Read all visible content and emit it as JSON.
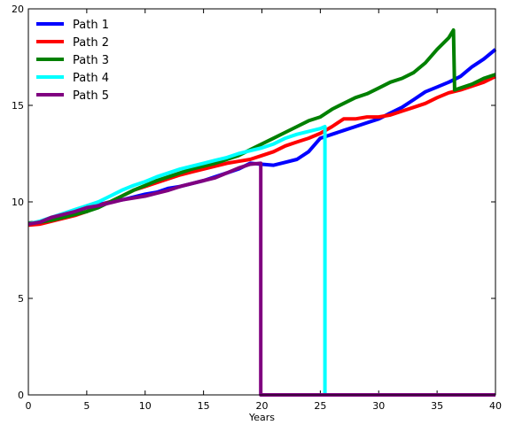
{
  "chart_data": {
    "type": "line",
    "title": "",
    "xlabel": "Years",
    "ylabel": "",
    "xlim": [
      0,
      40
    ],
    "ylim": [
      0,
      20
    ],
    "xticks": [
      0,
      5,
      10,
      15,
      20,
      25,
      30,
      35,
      40
    ],
    "yticks": [
      0,
      5,
      10,
      15,
      20
    ],
    "grid": false,
    "legend_position": "top-left",
    "series": [
      {
        "name": "Path 1",
        "color": "#0000ff",
        "points": [
          [
            0,
            8.9
          ],
          [
            1,
            8.95
          ],
          [
            2,
            9.1
          ],
          [
            3,
            9.3
          ],
          [
            4,
            9.5
          ],
          [
            5,
            9.7
          ],
          [
            6,
            9.85
          ],
          [
            7,
            10.0
          ],
          [
            8,
            10.1
          ],
          [
            9,
            10.25
          ],
          [
            10,
            10.4
          ],
          [
            11,
            10.5
          ],
          [
            12,
            10.7
          ],
          [
            13,
            10.8
          ],
          [
            14,
            10.95
          ],
          [
            15,
            11.1
          ],
          [
            16,
            11.3
          ],
          [
            17,
            11.5
          ],
          [
            18,
            11.7
          ],
          [
            19,
            12.0
          ],
          [
            20,
            11.95
          ],
          [
            21,
            11.9
          ],
          [
            22,
            12.05
          ],
          [
            23,
            12.2
          ],
          [
            24,
            12.6
          ],
          [
            25,
            13.3
          ],
          [
            26,
            13.5
          ],
          [
            27,
            13.7
          ],
          [
            28,
            13.9
          ],
          [
            29,
            14.1
          ],
          [
            30,
            14.3
          ],
          [
            31,
            14.6
          ],
          [
            32,
            14.9
          ],
          [
            33,
            15.3
          ],
          [
            34,
            15.7
          ],
          [
            35,
            15.95
          ],
          [
            36,
            16.2
          ],
          [
            37,
            16.5
          ],
          [
            38,
            17.0
          ],
          [
            39,
            17.4
          ],
          [
            40,
            17.9
          ]
        ]
      },
      {
        "name": "Path 2",
        "color": "#ff0000",
        "points": [
          [
            0,
            8.8
          ],
          [
            1,
            8.85
          ],
          [
            2,
            9.0
          ],
          [
            3,
            9.15
          ],
          [
            4,
            9.3
          ],
          [
            5,
            9.5
          ],
          [
            6,
            9.8
          ],
          [
            7,
            10.0
          ],
          [
            8,
            10.3
          ],
          [
            9,
            10.6
          ],
          [
            10,
            10.8
          ],
          [
            11,
            11.0
          ],
          [
            12,
            11.2
          ],
          [
            13,
            11.4
          ],
          [
            14,
            11.55
          ],
          [
            15,
            11.7
          ],
          [
            16,
            11.85
          ],
          [
            17,
            12.0
          ],
          [
            18,
            12.1
          ],
          [
            19,
            12.2
          ],
          [
            20,
            12.4
          ],
          [
            21,
            12.6
          ],
          [
            22,
            12.9
          ],
          [
            23,
            13.1
          ],
          [
            24,
            13.3
          ],
          [
            25,
            13.55
          ],
          [
            26,
            13.9
          ],
          [
            27,
            14.3
          ],
          [
            28,
            14.3
          ],
          [
            29,
            14.4
          ],
          [
            30,
            14.4
          ],
          [
            31,
            14.5
          ],
          [
            32,
            14.7
          ],
          [
            33,
            14.9
          ],
          [
            34,
            15.1
          ],
          [
            35,
            15.4
          ],
          [
            36,
            15.65
          ],
          [
            37,
            15.8
          ],
          [
            38,
            16.0
          ],
          [
            39,
            16.2
          ],
          [
            40,
            16.5
          ]
        ]
      },
      {
        "name": "Path 3",
        "color": "#008000",
        "points": [
          [
            0,
            8.9
          ],
          [
            1,
            8.95
          ],
          [
            2,
            9.05
          ],
          [
            3,
            9.2
          ],
          [
            4,
            9.35
          ],
          [
            5,
            9.5
          ],
          [
            6,
            9.7
          ],
          [
            7,
            10.0
          ],
          [
            8,
            10.3
          ],
          [
            9,
            10.6
          ],
          [
            10,
            10.85
          ],
          [
            11,
            11.1
          ],
          [
            12,
            11.3
          ],
          [
            13,
            11.5
          ],
          [
            14,
            11.7
          ],
          [
            15,
            11.85
          ],
          [
            16,
            12.0
          ],
          [
            17,
            12.2
          ],
          [
            18,
            12.4
          ],
          [
            19,
            12.7
          ],
          [
            20,
            13.0
          ],
          [
            21,
            13.3
          ],
          [
            22,
            13.6
          ],
          [
            23,
            13.9
          ],
          [
            24,
            14.2
          ],
          [
            25,
            14.4
          ],
          [
            26,
            14.8
          ],
          [
            27,
            15.1
          ],
          [
            28,
            15.4
          ],
          [
            29,
            15.6
          ],
          [
            30,
            15.9
          ],
          [
            31,
            16.2
          ],
          [
            32,
            16.4
          ],
          [
            33,
            16.7
          ],
          [
            34,
            17.2
          ],
          [
            35,
            17.9
          ],
          [
            36,
            18.5
          ],
          [
            36.4,
            18.9
          ],
          [
            36.5,
            15.8
          ],
          [
            37,
            15.9
          ],
          [
            38,
            16.1
          ],
          [
            39,
            16.4
          ],
          [
            40,
            16.6
          ]
        ]
      },
      {
        "name": "Path 4",
        "color": "#00ffff",
        "points": [
          [
            0,
            8.85
          ],
          [
            1,
            9.0
          ],
          [
            2,
            9.2
          ],
          [
            3,
            9.4
          ],
          [
            4,
            9.6
          ],
          [
            5,
            9.8
          ],
          [
            6,
            10.0
          ],
          [
            7,
            10.3
          ],
          [
            8,
            10.6
          ],
          [
            9,
            10.85
          ],
          [
            10,
            11.05
          ],
          [
            11,
            11.3
          ],
          [
            12,
            11.5
          ],
          [
            13,
            11.7
          ],
          [
            14,
            11.85
          ],
          [
            15,
            12.0
          ],
          [
            16,
            12.15
          ],
          [
            17,
            12.3
          ],
          [
            18,
            12.5
          ],
          [
            19,
            12.65
          ],
          [
            20,
            12.8
          ],
          [
            21,
            13.0
          ],
          [
            22,
            13.3
          ],
          [
            23,
            13.5
          ],
          [
            24,
            13.65
          ],
          [
            25,
            13.8
          ],
          [
            25.4,
            13.9
          ],
          [
            25.4,
            0
          ],
          [
            40,
            0
          ]
        ]
      },
      {
        "name": "Path 5",
        "color": "#800080",
        "points": [
          [
            0,
            8.85
          ],
          [
            1,
            8.95
          ],
          [
            2,
            9.2
          ],
          [
            3,
            9.35
          ],
          [
            4,
            9.5
          ],
          [
            5,
            9.7
          ],
          [
            6,
            9.8
          ],
          [
            7,
            9.95
          ],
          [
            8,
            10.1
          ],
          [
            9,
            10.2
          ],
          [
            10,
            10.3
          ],
          [
            11,
            10.45
          ],
          [
            12,
            10.6
          ],
          [
            13,
            10.8
          ],
          [
            14,
            10.95
          ],
          [
            15,
            11.1
          ],
          [
            16,
            11.25
          ],
          [
            17,
            11.5
          ],
          [
            18,
            11.75
          ],
          [
            19,
            11.95
          ],
          [
            19.9,
            12.0
          ],
          [
            19.9,
            0
          ],
          [
            40,
            0
          ]
        ]
      }
    ]
  }
}
